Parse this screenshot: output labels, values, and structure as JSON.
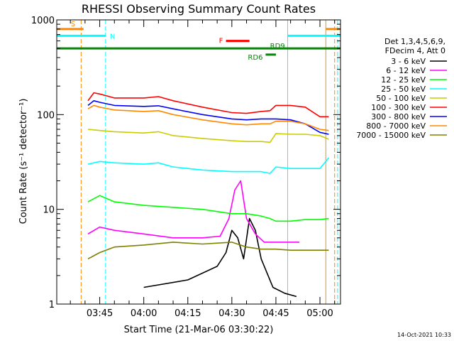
{
  "chart_data": {
    "type": "line",
    "title": "RHESSI Observing Summary Count Rates",
    "xlabel": "Start Time (21-Mar-06 03:30:22)",
    "ylabel": "Count Rate (s⁻¹ detector⁻¹)",
    "y_scale": "log",
    "ylim": [
      1,
      1000
    ],
    "xlim": [
      "03:30:22",
      "05:07:00"
    ],
    "x_ticks": [
      "03:45",
      "04:00",
      "04:15",
      "04:30",
      "04:45",
      "05:00"
    ],
    "y_ticks": [
      "1",
      "10",
      "100",
      "1000"
    ],
    "legend_header": [
      "Det 1,3,4,5,6,9,",
      "FDecim 4, Att 0"
    ],
    "legend_position": "right",
    "timestamp": "14-Oct-2021 10:33",
    "series": [
      {
        "name": "3 - 6 keV",
        "color": "#000000",
        "x": [
          "04:00",
          "04:15",
          "04:25",
          "04:28",
          "04:30",
          "04:32",
          "04:34",
          "04:36",
          "04:38",
          "04:40",
          "04:44",
          "04:48",
          "04:52"
        ],
        "y": [
          1.5,
          1.8,
          2.5,
          3.5,
          6,
          5,
          3,
          8,
          6,
          3,
          1.5,
          1.3,
          1.2
        ]
      },
      {
        "name": "6 - 12 keV",
        "color": "#ff00ff",
        "x": [
          "03:41",
          "03:45",
          "03:50",
          "04:00",
          "04:10",
          "04:20",
          "04:26",
          "04:29",
          "04:31",
          "04:33",
          "04:35",
          "04:38",
          "04:41",
          "04:44",
          "04:47",
          "04:50",
          "04:53"
        ],
        "y": [
          5.5,
          6.5,
          6,
          5.5,
          5,
          5,
          5.2,
          8,
          16,
          20,
          8,
          5.5,
          4.5,
          4.5,
          4.5,
          4.5,
          4.5
        ]
      },
      {
        "name": "12 - 25 keV",
        "color": "#00ff00",
        "x": [
          "03:41",
          "03:45",
          "03:50",
          "04:00",
          "04:10",
          "04:20",
          "04:30",
          "04:35",
          "04:40",
          "04:43",
          "04:45",
          "04:50",
          "04:55",
          "05:00",
          "05:03"
        ],
        "y": [
          12,
          14,
          12,
          11,
          10.5,
          10,
          9,
          9,
          8.5,
          8,
          7.5,
          7.5,
          7.8,
          7.8,
          8
        ]
      },
      {
        "name": "25 - 50 keV",
        "color": "#00ffff",
        "x": [
          "03:41",
          "03:45",
          "03:50",
          "04:00",
          "04:05",
          "04:10",
          "04:20",
          "04:30",
          "04:35",
          "04:40",
          "04:43",
          "04:45",
          "04:50",
          "04:55",
          "05:00",
          "05:03"
        ],
        "y": [
          30,
          32,
          31,
          30,
          31,
          28,
          26,
          25,
          25,
          25,
          24,
          28,
          27,
          27,
          27,
          35
        ]
      },
      {
        "name": "50 - 100 keV",
        "color": "#cccc00",
        "x": [
          "03:41",
          "03:45",
          "03:50",
          "04:00",
          "04:05",
          "04:10",
          "04:20",
          "04:30",
          "04:35",
          "04:40",
          "04:43",
          "04:45",
          "04:50",
          "04:55",
          "05:00",
          "05:03"
        ],
        "y": [
          70,
          68,
          66,
          64,
          66,
          60,
          56,
          53,
          52,
          52,
          51,
          63,
          62,
          62,
          60,
          55
        ]
      },
      {
        "name": "100 - 300 keV",
        "color": "#ff0000",
        "x": [
          "03:41",
          "03:43",
          "03:45",
          "03:50",
          "04:00",
          "04:05",
          "04:10",
          "04:20",
          "04:30",
          "04:35",
          "04:40",
          "04:43",
          "04:45",
          "04:50",
          "04:55",
          "05:00",
          "05:03"
        ],
        "y": [
          140,
          170,
          165,
          150,
          150,
          155,
          140,
          120,
          105,
          103,
          108,
          110,
          125,
          125,
          120,
          95,
          95
        ]
      },
      {
        "name": "300 - 800 keV",
        "color": "#0000ff",
        "x": [
          "03:41",
          "03:43",
          "03:45",
          "03:50",
          "04:00",
          "04:05",
          "04:10",
          "04:20",
          "04:30",
          "04:35",
          "04:40",
          "04:43",
          "04:45",
          "04:50",
          "04:55",
          "05:00",
          "05:03"
        ],
        "y": [
          125,
          140,
          135,
          125,
          122,
          124,
          115,
          100,
          90,
          88,
          90,
          90,
          90,
          88,
          80,
          65,
          62
        ]
      },
      {
        "name": "800 - 7000 keV",
        "color": "#ff8800",
        "x": [
          "03:41",
          "03:43",
          "03:45",
          "03:50",
          "04:00",
          "04:05",
          "04:10",
          "04:20",
          "04:30",
          "04:35",
          "04:40",
          "04:43",
          "04:45",
          "04:50",
          "04:55",
          "05:00",
          "05:03"
        ],
        "y": [
          115,
          125,
          120,
          112,
          108,
          110,
          100,
          88,
          80,
          78,
          80,
          80,
          85,
          85,
          80,
          70,
          68
        ]
      },
      {
        "name": "7000 - 15000 keV",
        "color": "#808000",
        "x": [
          "03:41",
          "03:45",
          "03:50",
          "04:00",
          "04:10",
          "04:20",
          "04:30",
          "04:35",
          "04:40",
          "04:45",
          "04:50",
          "04:55",
          "05:00",
          "05:03"
        ],
        "y": [
          3,
          3.5,
          4,
          4.2,
          4.5,
          4.3,
          4.5,
          4,
          3.8,
          3.8,
          3.7,
          3.7,
          3.7,
          3.7
        ]
      }
    ],
    "annotations": [
      {
        "label": "S",
        "color": "#ff8800",
        "x0": "03:30:22",
        "x1": "03:39:30",
        "y": 800
      },
      {
        "label": "N",
        "color": "#00ffff",
        "x0": "03:30:22",
        "x1": "03:47:00",
        "y": 680
      },
      {
        "label": "F",
        "color": "#ff0000",
        "x0": "04:28:00",
        "x1": "04:36:00",
        "y": 600
      },
      {
        "label": "RD9",
        "color": "#008800",
        "x0": "03:30:22",
        "x1": "05:07:00",
        "y": 500
      },
      {
        "label": "RD6",
        "color": "#008800",
        "x0": "04:41:30",
        "x1": "04:45:00",
        "y": 430
      },
      {
        "label": "",
        "color": "#ff8800",
        "x0": "05:02:00",
        "x1": "05:07:00",
        "y": 800
      },
      {
        "label": "",
        "color": "#00ffff",
        "x0": "04:49:00",
        "x1": "05:07:00",
        "y": 680
      }
    ],
    "vertical_lines": [
      {
        "x": "03:38:40",
        "color": "#ff8800",
        "style": "dashed"
      },
      {
        "x": "03:47:00",
        "color": "#00ffff",
        "style": "dashed"
      },
      {
        "x": "04:49:00",
        "color": "#00ffff",
        "style": "solid"
      },
      {
        "x": "05:02:00",
        "color": "#ff8800",
        "style": "solid"
      },
      {
        "x": "05:05:00",
        "color": "#ff8800",
        "style": "dashed"
      },
      {
        "x": "05:06:00",
        "color": "#00ffff",
        "style": "dashed"
      }
    ]
  }
}
